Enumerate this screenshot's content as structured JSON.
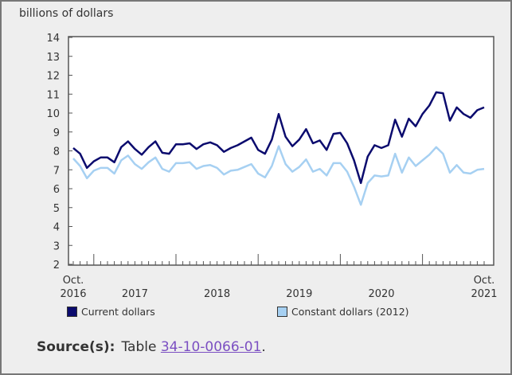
{
  "chart_data": {
    "type": "line",
    "ylabel": "billions of dollars",
    "ylim": [
      2,
      14
    ],
    "yticks": [
      2,
      3,
      4,
      5,
      6,
      7,
      8,
      9,
      10,
      11,
      12,
      13,
      14
    ],
    "x_start": "2016-10",
    "x_end": "2021-10",
    "x_tick_labels": [
      {
        "month": "2016-10",
        "line1": "Oct.",
        "line2": "2016"
      },
      {
        "month": "2017-07",
        "line1": "",
        "line2": "2017"
      },
      {
        "month": "2018-07",
        "line1": "",
        "line2": "2018"
      },
      {
        "month": "2019-07",
        "line1": "",
        "line2": "2019"
      },
      {
        "month": "2020-07",
        "line1": "",
        "line2": "2020"
      },
      {
        "month": "2021-10",
        "line1": "Oct.",
        "line2": "2021"
      }
    ],
    "grid": false,
    "legend_position": "bottom",
    "series": [
      {
        "name": "Current dollars",
        "color": "#0b0b6e",
        "values": [
          8.15,
          7.85,
          7.1,
          7.45,
          7.65,
          7.65,
          7.4,
          8.2,
          8.5,
          8.1,
          7.8,
          8.2,
          8.5,
          7.9,
          7.85,
          8.35,
          8.35,
          8.4,
          8.1,
          8.35,
          8.45,
          8.3,
          7.95,
          8.15,
          8.3,
          8.5,
          8.7,
          8.05,
          7.85,
          8.6,
          9.95,
          8.75,
          8.25,
          8.6,
          9.15,
          8.4,
          8.55,
          8.05,
          8.9,
          8.95,
          8.4,
          7.5,
          6.3,
          7.7,
          8.3,
          8.15,
          8.3,
          9.65,
          8.75,
          9.7,
          9.3,
          9.95,
          10.4,
          11.1,
          11.05,
          9.6,
          10.3,
          9.95,
          9.75,
          10.15,
          10.3
        ]
      },
      {
        "name": "Constant dollars (2012)",
        "color": "#a6d0f2",
        "values": [
          7.6,
          7.2,
          6.55,
          6.95,
          7.1,
          7.1,
          6.8,
          7.5,
          7.75,
          7.3,
          7.05,
          7.4,
          7.65,
          7.05,
          6.9,
          7.35,
          7.35,
          7.4,
          7.05,
          7.2,
          7.25,
          7.1,
          6.75,
          6.95,
          7.0,
          7.15,
          7.3,
          6.8,
          6.6,
          7.2,
          8.25,
          7.3,
          6.9,
          7.15,
          7.55,
          6.9,
          7.05,
          6.7,
          7.35,
          7.35,
          6.9,
          6.1,
          5.15,
          6.3,
          6.7,
          6.65,
          6.7,
          7.85,
          6.85,
          7.65,
          7.2,
          7.5,
          7.8,
          8.2,
          7.85,
          6.85,
          7.25,
          6.85,
          6.8,
          7.0,
          7.05
        ]
      }
    ]
  },
  "source": {
    "label": "Source(s):",
    "prefix": "Table",
    "link": "34-10-0066-01",
    "suffix": "."
  }
}
